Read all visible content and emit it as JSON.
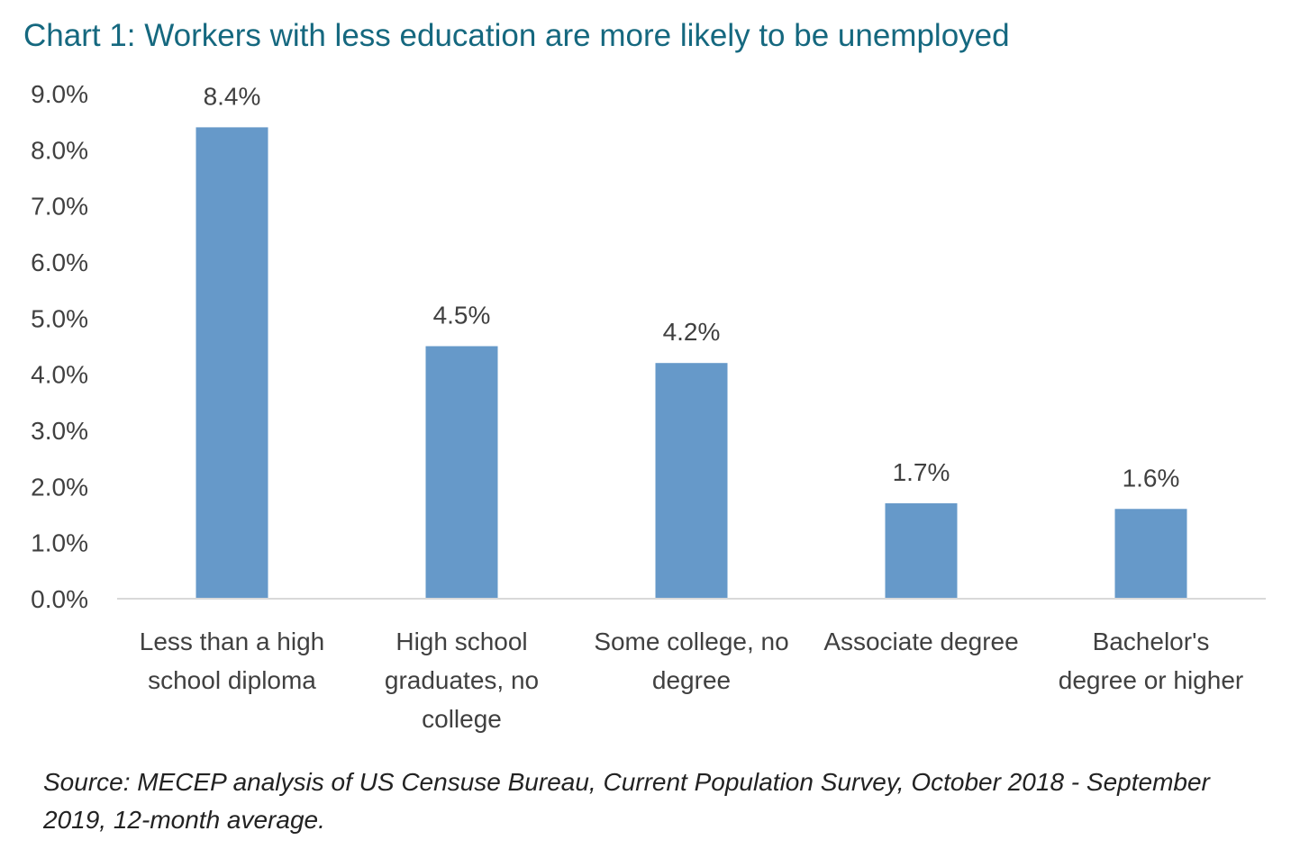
{
  "chart_data": {
    "type": "bar",
    "title": "Chart 1: Workers with less education are more likely to be unemployed",
    "categories": [
      "Less than a high school diploma",
      "High school graduates, no college",
      "Some college, no degree",
      "Associate degree",
      "Bachelor's degree or higher"
    ],
    "category_label_lines": [
      [
        "Less than a high",
        "school diploma"
      ],
      [
        "High school",
        "graduates, no",
        "college"
      ],
      [
        "Some college, no",
        "degree"
      ],
      [
        "Associate degree"
      ],
      [
        "Bachelor's",
        "degree or higher"
      ]
    ],
    "values": [
      8.4,
      4.5,
      4.2,
      1.7,
      1.6
    ],
    "data_labels": [
      "8.4%",
      "4.5%",
      "4.2%",
      "1.7%",
      "1.6%"
    ],
    "ylim": [
      0,
      9
    ],
    "y_ticks": [
      0,
      1,
      2,
      3,
      4,
      5,
      6,
      7,
      8,
      9
    ],
    "y_tick_labels": [
      "0.0%",
      "1.0%",
      "2.0%",
      "3.0%",
      "4.0%",
      "5.0%",
      "6.0%",
      "7.0%",
      "8.0%",
      "9.0%"
    ],
    "xlabel": "",
    "ylabel": "",
    "grid": false,
    "legend": "none",
    "bar_color": "#6699c9",
    "axis_color": "#d9d9d9"
  },
  "source_note": "Source: MECEP analysis of US Censuse Bureau, Current Population Survey, October 2018 - September 2019, 12-month average."
}
